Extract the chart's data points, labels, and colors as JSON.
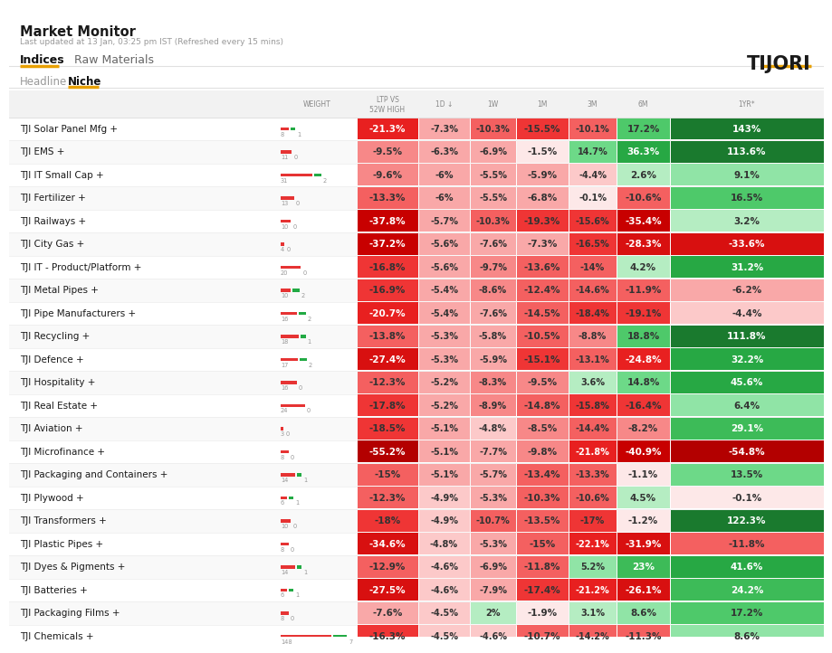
{
  "title": "Market Monitor",
  "subtitle": "Last updated at 13 Jan, 03:25 pm IST (Refreshed every 15 mins)",
  "tabs1": [
    "Indices",
    "Raw Materials"
  ],
  "tabs2": [
    "Headline",
    "Niche"
  ],
  "brand": "TIJORI",
  "columns": [
    "WEIGHT",
    "LTP VS\n52W HIGH",
    "1D ↓",
    "1W",
    "1M",
    "3M",
    "6M",
    "1YR*"
  ],
  "rows": [
    {
      "name": "TJI Solar Panel Mfg +",
      "wb": 8,
      "wd": 1,
      "values": [
        "-21.3%",
        "-7.3%",
        "-10.3%",
        "-15.5%",
        "-10.1%",
        "17.2%",
        "143%"
      ]
    },
    {
      "name": "TJI EMS +",
      "wb": 11,
      "wd": 0,
      "values": [
        "-9.5%",
        "-6.3%",
        "-6.9%",
        "-1.5%",
        "14.7%",
        "36.3%",
        "113.6%"
      ]
    },
    {
      "name": "TJI IT Small Cap +",
      "wb": 31,
      "wd": 2,
      "values": [
        "-9.6%",
        "-6%",
        "-5.5%",
        "-5.9%",
        "-4.4%",
        "2.6%",
        "9.1%"
      ]
    },
    {
      "name": "TJI Fertilizer +",
      "wb": 13,
      "wd": 0,
      "values": [
        "-13.3%",
        "-6%",
        "-5.5%",
        "-6.8%",
        "-0.1%",
        "-10.6%",
        "16.5%"
      ]
    },
    {
      "name": "TJI Railways +",
      "wb": 10,
      "wd": 0,
      "values": [
        "-37.8%",
        "-5.7%",
        "-10.3%",
        "-19.3%",
        "-15.6%",
        "-35.4%",
        "3.2%"
      ]
    },
    {
      "name": "TJI City Gas +",
      "wb": 4,
      "wd": 0,
      "values": [
        "-37.2%",
        "-5.6%",
        "-7.6%",
        "-7.3%",
        "-16.5%",
        "-28.3%",
        "-33.6%"
      ]
    },
    {
      "name": "TJI IT - Product/Platform +",
      "wb": 20,
      "wd": 0,
      "values": [
        "-16.8%",
        "-5.6%",
        "-9.7%",
        "-13.6%",
        "-14%",
        "4.2%",
        "31.2%"
      ]
    },
    {
      "name": "TJI Metal Pipes +",
      "wb": 10,
      "wd": 2,
      "values": [
        "-16.9%",
        "-5.4%",
        "-8.6%",
        "-12.4%",
        "-14.6%",
        "-11.9%",
        "-6.2%"
      ]
    },
    {
      "name": "TJI Pipe Manufacturers +",
      "wb": 16,
      "wd": 2,
      "values": [
        "-20.7%",
        "-5.4%",
        "-7.6%",
        "-14.5%",
        "-18.4%",
        "-19.1%",
        "-4.4%"
      ]
    },
    {
      "name": "TJI Recycling +",
      "wb": 18,
      "wd": 1,
      "values": [
        "-13.8%",
        "-5.3%",
        "-5.8%",
        "-10.5%",
        "-8.8%",
        "18.8%",
        "111.8%"
      ]
    },
    {
      "name": "TJI Defence +",
      "wb": 17,
      "wd": 2,
      "values": [
        "-27.4%",
        "-5.3%",
        "-5.9%",
        "-15.1%",
        "-13.1%",
        "-24.8%",
        "32.2%"
      ]
    },
    {
      "name": "TJI Hospitality +",
      "wb": 16,
      "wd": 0,
      "values": [
        "-12.3%",
        "-5.2%",
        "-8.3%",
        "-9.5%",
        "3.6%",
        "14.8%",
        "45.6%"
      ]
    },
    {
      "name": "TJI Real Estate +",
      "wb": 24,
      "wd": 0,
      "values": [
        "-17.8%",
        "-5.2%",
        "-8.9%",
        "-14.8%",
        "-15.8%",
        "-16.4%",
        "6.4%"
      ]
    },
    {
      "name": "TJI Aviation +",
      "wb": 3,
      "wd": 0,
      "values": [
        "-18.5%",
        "-5.1%",
        "-4.8%",
        "-8.5%",
        "-14.4%",
        "-8.2%",
        "29.1%"
      ]
    },
    {
      "name": "TJI Microfinance +",
      "wb": 8,
      "wd": 0,
      "values": [
        "-55.2%",
        "-5.1%",
        "-7.7%",
        "-9.8%",
        "-21.8%",
        "-40.9%",
        "-54.8%"
      ]
    },
    {
      "name": "TJI Packaging and Containers +",
      "wb": 14,
      "wd": 1,
      "values": [
        "-15%",
        "-5.1%",
        "-5.7%",
        "-13.4%",
        "-13.3%",
        "-1.1%",
        "13.5%"
      ]
    },
    {
      "name": "TJI Plywood +",
      "wb": 6,
      "wd": 1,
      "values": [
        "-12.3%",
        "-4.9%",
        "-5.3%",
        "-10.3%",
        "-10.6%",
        "4.5%",
        "-0.1%"
      ]
    },
    {
      "name": "TJI Transformers +",
      "wb": 10,
      "wd": 0,
      "values": [
        "-18%",
        "-4.9%",
        "-10.7%",
        "-13.5%",
        "-17%",
        "-1.2%",
        "122.3%"
      ]
    },
    {
      "name": "TJI Plastic Pipes +",
      "wb": 8,
      "wd": 0,
      "values": [
        "-34.6%",
        "-4.8%",
        "-5.3%",
        "-15%",
        "-22.1%",
        "-31.9%",
        "-11.8%"
      ]
    },
    {
      "name": "TJI Dyes & Pigments +",
      "wb": 14,
      "wd": 1,
      "values": [
        "-12.9%",
        "-4.6%",
        "-6.9%",
        "-11.8%",
        "5.2%",
        "23%",
        "41.6%"
      ]
    },
    {
      "name": "TJI Batteries +",
      "wb": 6,
      "wd": 1,
      "values": [
        "-27.5%",
        "-4.6%",
        "-7.9%",
        "-17.4%",
        "-21.2%",
        "-26.1%",
        "24.2%"
      ]
    },
    {
      "name": "TJI Packaging Films +",
      "wb": 8,
      "wd": 0,
      "values": [
        "-7.6%",
        "-4.5%",
        "2%",
        "-1.9%",
        "3.1%",
        "8.6%",
        "17.2%"
      ]
    },
    {
      "name": "TJI Chemicals +",
      "wb": 148,
      "wd": 7,
      "values": [
        "-16.3%",
        "-4.5%",
        "-4.6%",
        "-10.7%",
        "-14.2%",
        "-11.3%",
        "8.6%"
      ]
    }
  ]
}
